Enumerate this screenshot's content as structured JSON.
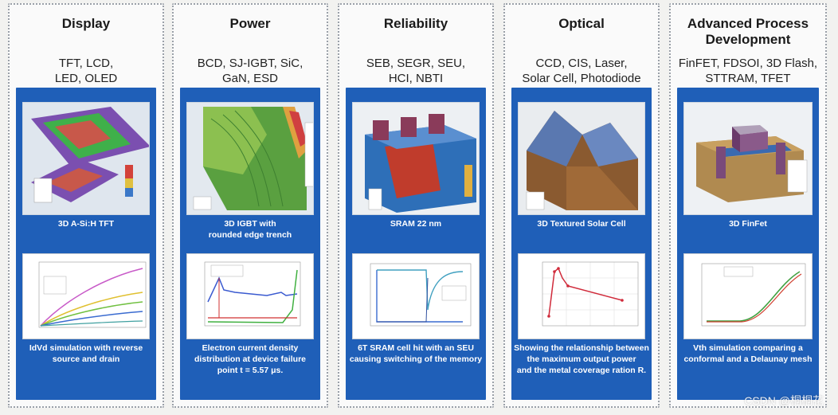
{
  "columns": [
    {
      "title": "Display",
      "subtitle_lines": [
        "TFT, LCD,",
        "LED, OLED"
      ],
      "sim_caption_lines": [
        "3D A-Si:H TFT"
      ],
      "plot_caption_lines": [
        "IdVd simulation with reverse",
        "source and drain"
      ]
    },
    {
      "title": "Power",
      "subtitle_lines": [
        "BCD, SJ-IGBT, SiC,",
        "GaN, ESD"
      ],
      "sim_caption_lines": [
        "3D IGBT with",
        "rounded edge trench"
      ],
      "plot_caption_lines": [
        "Electron current density",
        "distribution at device failure",
        "point t = 5.57 μs."
      ]
    },
    {
      "title": "Reliability",
      "subtitle_lines": [
        "SEB, SEGR, SEU,",
        "HCI, NBTI"
      ],
      "sim_caption_lines": [
        "SRAM 22 nm"
      ],
      "plot_caption_lines": [
        "6T SRAM cell hit with an SEU",
        "causing switching of the memory"
      ]
    },
    {
      "title": "Optical",
      "subtitle_lines": [
        "CCD, CIS, Laser,",
        "Solar Cell, Photodiode"
      ],
      "sim_caption_lines": [
        "3D Textured Solar Cell"
      ],
      "plot_caption_lines": [
        "Showing the relationship between",
        "the maximum output power",
        "and the metal coverage ration R."
      ]
    },
    {
      "title_lines": [
        "Advanced Process",
        "Development"
      ],
      "subtitle_lines": [
        "FinFET, FDSOI, 3D Flash,",
        "STTRAM, TFET"
      ],
      "sim_caption_lines": [
        "3D FinFet"
      ],
      "plot_caption_lines": [
        "Vth simulation comparing a",
        "conformal and a Delaunay mesh"
      ]
    }
  ],
  "watermark": "CSDN @桐桐花",
  "colors": {
    "panel_blue": "#1f5fb8",
    "border": "#9aa0a8"
  }
}
